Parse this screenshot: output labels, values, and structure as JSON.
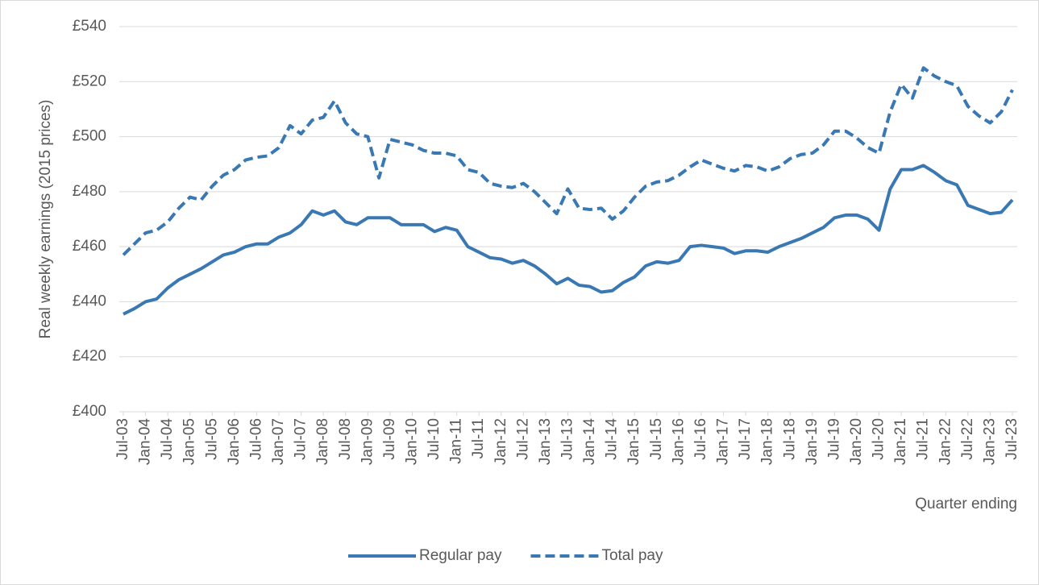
{
  "chart_data": {
    "type": "line",
    "y_label": "Real weekly earnings (2015 prices)",
    "x_label": "Quarter ending",
    "categories": [
      "Jul-03",
      null,
      "Jan-04",
      null,
      "Jul-04",
      null,
      "Jan-05",
      null,
      "Jul-05",
      null,
      "Jan-06",
      null,
      "Jul-06",
      null,
      "Jan-07",
      null,
      "Jul-07",
      null,
      "Jan-08",
      null,
      "Jul-08",
      null,
      "Jan-09",
      null,
      "Jul-09",
      null,
      "Jan-10",
      null,
      "Jul-10",
      null,
      "Jan-11",
      null,
      "Jul-11",
      null,
      "Jan-12",
      null,
      "Jul-12",
      null,
      "Jan-13",
      null,
      "Jul-13",
      null,
      "Jan-14",
      null,
      "Jul-14",
      null,
      "Jan-15",
      null,
      "Jul-15",
      null,
      "Jan-16",
      null,
      "Jul-16",
      null,
      "Jan-17",
      null,
      "Jul-17",
      null,
      "Jan-18",
      null,
      "Jul-18",
      null,
      "Jan-19",
      null,
      "Jul-19",
      null,
      "Jan-20",
      null,
      "Jul-20",
      null,
      "Jan-21",
      null,
      "Jul-21",
      null,
      "Jan-22",
      null,
      "Jul-22",
      null,
      "Jan-23",
      null,
      "Jul-23"
    ],
    "series": [
      {
        "name": "Regular pay",
        "color": "#3a78b4",
        "dashed": false,
        "values": [
          435.5,
          437.5,
          440,
          441,
          445,
          448,
          450,
          452,
          454.5,
          457,
          458,
          460,
          461,
          461,
          463.5,
          465,
          468,
          473,
          471.5,
          473,
          469,
          468,
          470.5,
          470.5,
          470.5,
          468,
          468,
          468,
          465.5,
          467,
          466,
          460,
          458,
          456,
          455.5,
          454,
          455,
          453,
          450,
          446.5,
          448.5,
          446,
          445.5,
          443.5,
          444,
          447,
          449,
          453,
          454.5,
          454,
          455,
          460,
          460.5,
          460,
          459.5,
          457.5,
          458.5,
          458.5,
          458,
          460,
          461.5,
          463,
          465,
          467,
          470.5,
          471.5,
          471.5,
          470,
          466,
          481,
          488,
          488,
          489.5,
          487,
          484,
          482.5,
          475,
          473.5,
          472,
          472.5,
          477
        ]
      },
      {
        "name": "Total pay",
        "color": "#3a78b4",
        "dashed": true,
        "values": [
          457,
          461,
          465,
          466,
          469,
          474,
          478,
          477,
          482,
          486,
          488,
          491.5,
          492.5,
          493,
          496,
          504,
          501,
          506,
          507,
          513,
          505,
          501,
          500,
          485,
          499,
          498,
          497,
          495,
          494,
          494,
          493,
          488,
          487,
          483,
          482,
          481.5,
          483,
          480,
          476,
          472,
          481,
          474,
          473.5,
          474,
          470,
          473,
          478,
          482,
          483.5,
          484,
          486,
          489,
          491.5,
          490,
          488.5,
          487.5,
          489.5,
          489,
          487.5,
          489,
          492,
          493.5,
          494,
          497,
          502,
          502,
          499.5,
          496,
          494,
          509,
          519,
          514,
          525,
          522,
          520,
          518.5,
          511,
          507.5,
          505,
          509,
          517
        ]
      }
    ],
    "ylim": [
      400,
      540
    ],
    "yticks": [
      {
        "value": 400,
        "label": "£400"
      },
      {
        "value": 420,
        "label": "£420"
      },
      {
        "value": 440,
        "label": "£440"
      },
      {
        "value": 460,
        "label": "£460"
      },
      {
        "value": 480,
        "label": "£480"
      },
      {
        "value": 500,
        "label": "£500"
      },
      {
        "value": 520,
        "label": "£520"
      },
      {
        "value": 540,
        "label": "£540"
      }
    ],
    "grid": true
  }
}
